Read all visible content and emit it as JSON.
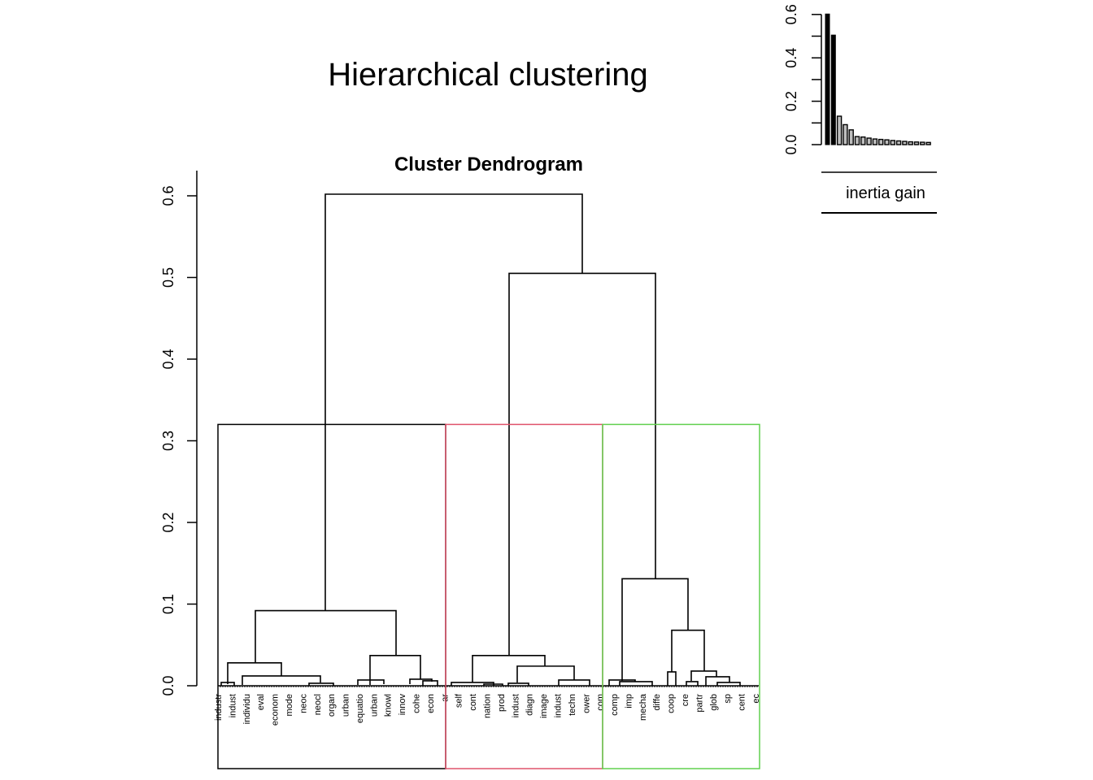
{
  "title": "Hierarchical clustering",
  "chart_data": [
    {
      "type": "dendrogram",
      "title": "Cluster Dendrogram",
      "ylim": [
        0,
        0.62
      ],
      "y_ticks": [
        "0.0",
        "0.1",
        "0.2",
        "0.3",
        "0.4",
        "0.5",
        "0.6"
      ],
      "y_tick_values": [
        0,
        0.1,
        0.2,
        0.3,
        0.4,
        0.5,
        0.6
      ],
      "root_height": 0.602,
      "cut_height": 0.32,
      "clusters": [
        {
          "id": 1,
          "border_color": "#000000",
          "merge_height": 0.092
        },
        {
          "id": 2,
          "border_color": "#DF536B",
          "merge_height": 0.037
        },
        {
          "id": 3,
          "border_color": "#61D04F",
          "merge_height": 0.131
        }
      ],
      "merges": [
        {
          "left": "cluster1",
          "right": "cluster2+3",
          "height": 0.602
        },
        {
          "left": "cluster2",
          "right": "cluster3",
          "height": 0.505
        }
      ],
      "visible_leaf_labels": [
        "industr",
        "indust",
        "individu",
        "eval",
        "econom",
        "mode",
        "neoc",
        "neocl",
        "organ",
        "urban",
        "equatio",
        "urban",
        "knowl",
        "innov",
        "cohe",
        "econ",
        "ar",
        "self",
        "cont",
        "nation",
        "prod",
        "indust",
        "diagn",
        "image",
        "indust",
        "techn",
        "ower",
        "com",
        "comp",
        "imp",
        "mecha",
        "diffe",
        "coop",
        "cre",
        "partr",
        "glob",
        "sp",
        "cent",
        "ec"
      ]
    },
    {
      "type": "bar",
      "xlabel": "inertia gain",
      "ylim": [
        0,
        0.6
      ],
      "y_ticks": [
        "0.0",
        "0.2",
        "0.4",
        "0.6"
      ],
      "y_tick_values": [
        0,
        0.2,
        0.4,
        0.6
      ],
      "values": [
        0.602,
        0.505,
        0.131,
        0.092,
        0.068,
        0.037,
        0.035,
        0.03,
        0.026,
        0.024,
        0.022,
        0.019,
        0.017,
        0.015,
        0.013,
        0.012,
        0.011,
        0.01
      ],
      "highlighted_count": 2
    }
  ]
}
